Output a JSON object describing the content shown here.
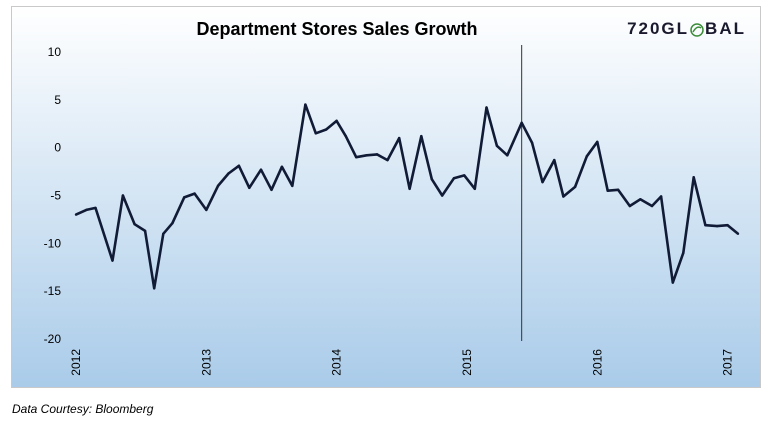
{
  "chart_data": {
    "type": "line",
    "title": "Department Stores Sales Growth",
    "xlabel": "",
    "ylabel": "",
    "ylim": [
      -20,
      10
    ],
    "yticks": [
      10,
      5,
      0,
      -5,
      -10,
      -15,
      -20
    ],
    "xticks": [
      "2012",
      "2013",
      "2014",
      "2015",
      "2016",
      "2017"
    ],
    "grid": false,
    "legend": "none",
    "line_color": "#111b36",
    "vertical_marker": {
      "x": 2015.42
    },
    "series": [
      {
        "x": [
          2012.0,
          2012.08,
          2012.15,
          2012.28,
          2012.36,
          2012.45,
          2012.53,
          2012.6,
          2012.67,
          2012.74,
          2012.83,
          2012.91,
          2013.0,
          2013.09,
          2013.17,
          2013.25,
          2013.33,
          2013.42,
          2013.5,
          2013.58,
          2013.66,
          2013.76,
          2013.84,
          2013.92,
          2014.0,
          2014.07,
          2014.15,
          2014.23,
          2014.31,
          2014.39,
          2014.48,
          2014.56,
          2014.65,
          2014.73,
          2014.81,
          2014.9,
          2014.98,
          2015.06,
          2015.15,
          2015.23,
          2015.31,
          2015.42,
          2015.5,
          2015.58,
          2015.67,
          2015.74,
          2015.83,
          2015.92,
          2016.0,
          2016.08,
          2016.16,
          2016.25,
          2016.33,
          2016.42,
          2016.49,
          2016.58,
          2016.66,
          2016.74,
          2016.83,
          2016.92,
          2017.0,
          2017.08
        ],
        "values": [
          -7.0,
          -6.5,
          -6.3,
          -11.8,
          -5.0,
          -8.0,
          -8.7,
          -14.7,
          -9.0,
          -7.9,
          -5.2,
          -4.8,
          -6.5,
          -4.0,
          -2.7,
          -1.9,
          -4.2,
          -2.3,
          -4.4,
          -2.0,
          -4.0,
          4.5,
          1.5,
          1.9,
          2.8,
          1.2,
          -1.0,
          -0.8,
          -0.7,
          -1.3,
          1.0,
          -4.3,
          1.2,
          -3.3,
          -5.0,
          -3.2,
          -2.9,
          -4.3,
          4.2,
          0.2,
          -0.8,
          2.6,
          0.5,
          -3.6,
          -1.3,
          -5.1,
          -4.1,
          -0.9,
          0.6,
          -4.5,
          -4.4,
          -6.1,
          -5.4,
          -6.1,
          -5.1,
          -14.1,
          -11.0,
          -3.1,
          -8.1,
          -8.2,
          -8.1,
          -9.0
        ]
      }
    ]
  },
  "header": {
    "title": "Department Stores Sales Growth",
    "logo_text_left": "720GL",
    "logo_text_right": "BAL",
    "logo_icon": "leaf-globe-icon"
  },
  "footer": {
    "source": "Data Courtesy: Bloomberg"
  },
  "colors": {
    "bg_top": "#ffffff",
    "bg_bottom": "#a9cbe9",
    "line": "#111b36",
    "marker": "#333333"
  }
}
